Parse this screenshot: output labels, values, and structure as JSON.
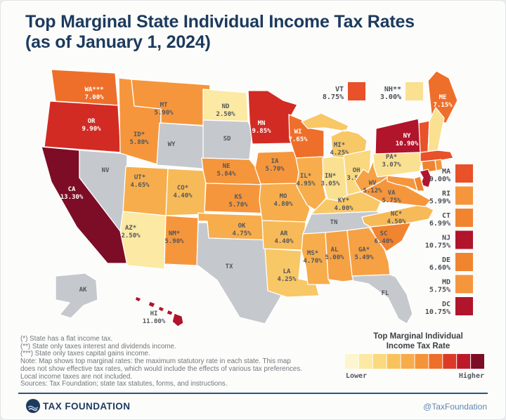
{
  "title": {
    "line1": "Top Marginal State Individual Income Tax Rates",
    "line2": "(as of January 1, 2024)"
  },
  "chart_data": {
    "type": "heatmap",
    "geography": "United States (states + DC)",
    "unit": "%",
    "title": "Top Marginal State Individual Income Tax Rates (as of January 1, 2024)",
    "states": [
      {
        "id": "WA",
        "abbr": "WA***",
        "rate": 7.0,
        "display": "7.00%"
      },
      {
        "id": "OR",
        "abbr": "OR",
        "rate": 9.9,
        "display": "9.90%"
      },
      {
        "id": "CA",
        "abbr": "CA",
        "rate": 13.3,
        "display": "13.30%"
      },
      {
        "id": "ID",
        "abbr": "ID*",
        "rate": 5.8,
        "display": "5.80%"
      },
      {
        "id": "NV",
        "abbr": "NV",
        "rate": null,
        "display": null
      },
      {
        "id": "MT",
        "abbr": "MT",
        "rate": 5.9,
        "display": "5.90%"
      },
      {
        "id": "WY",
        "abbr": "WY",
        "rate": null,
        "display": null
      },
      {
        "id": "UT",
        "abbr": "UT*",
        "rate": 4.65,
        "display": "4.65%"
      },
      {
        "id": "CO",
        "abbr": "CO*",
        "rate": 4.4,
        "display": "4.40%"
      },
      {
        "id": "AZ",
        "abbr": "AZ*",
        "rate": 2.5,
        "display": "2.50%"
      },
      {
        "id": "NM",
        "abbr": "NM*",
        "rate": 5.9,
        "display": "5.90%"
      },
      {
        "id": "ND",
        "abbr": "ND",
        "rate": 2.5,
        "display": "2.50%"
      },
      {
        "id": "SD",
        "abbr": "SD",
        "rate": null,
        "display": null
      },
      {
        "id": "NE",
        "abbr": "NE",
        "rate": 5.84,
        "display": "5.84%"
      },
      {
        "id": "KS",
        "abbr": "KS",
        "rate": 5.7,
        "display": "5.70%"
      },
      {
        "id": "OK",
        "abbr": "OK",
        "rate": 4.75,
        "display": "4.75%"
      },
      {
        "id": "TX",
        "abbr": "TX",
        "rate": null,
        "display": null
      },
      {
        "id": "MN",
        "abbr": "MN",
        "rate": 9.85,
        "display": "9.85%"
      },
      {
        "id": "IA",
        "abbr": "IA",
        "rate": 5.7,
        "display": "5.70%"
      },
      {
        "id": "MO",
        "abbr": "MO",
        "rate": 4.8,
        "display": "4.80%"
      },
      {
        "id": "AR",
        "abbr": "AR",
        "rate": 4.4,
        "display": "4.40%"
      },
      {
        "id": "LA",
        "abbr": "LA",
        "rate": 4.25,
        "display": "4.25%"
      },
      {
        "id": "WI",
        "abbr": "WI",
        "rate": 7.65,
        "display": "7.65%"
      },
      {
        "id": "IL",
        "abbr": "IL*",
        "rate": 4.95,
        "display": "4.95%"
      },
      {
        "id": "IN",
        "abbr": "IN*",
        "rate": 3.05,
        "display": "3.05%"
      },
      {
        "id": "MI",
        "abbr": "MI*",
        "rate": 4.25,
        "display": "4.25%"
      },
      {
        "id": "OH",
        "abbr": "OH",
        "rate": 3.5,
        "display": "3.50%"
      },
      {
        "id": "KY",
        "abbr": "KY*",
        "rate": 4.0,
        "display": "4.00%"
      },
      {
        "id": "TN",
        "abbr": "TN",
        "rate": null,
        "display": null
      },
      {
        "id": "MS",
        "abbr": "MS*",
        "rate": 4.7,
        "display": "4.70%"
      },
      {
        "id": "AL",
        "abbr": "AL",
        "rate": 5.0,
        "display": "5.00%"
      },
      {
        "id": "GA",
        "abbr": "GA*",
        "rate": 5.49,
        "display": "5.49%"
      },
      {
        "id": "FL",
        "abbr": "FL",
        "rate": null,
        "display": null
      },
      {
        "id": "SC",
        "abbr": "SC",
        "rate": 6.4,
        "display": "6.40%"
      },
      {
        "id": "NC",
        "abbr": "NC*",
        "rate": 4.5,
        "display": "4.50%"
      },
      {
        "id": "VA",
        "abbr": "VA",
        "rate": 5.75,
        "display": "5.75%"
      },
      {
        "id": "WV",
        "abbr": "WV",
        "rate": 5.12,
        "display": "5.12%"
      },
      {
        "id": "PA",
        "abbr": "PA*",
        "rate": 3.07,
        "display": "3.07%"
      },
      {
        "id": "NY",
        "abbr": "NY",
        "rate": 10.9,
        "display": "10.90%"
      },
      {
        "id": "ME",
        "abbr": "ME",
        "rate": 7.15,
        "display": "7.15%"
      },
      {
        "id": "VT",
        "abbr": "VT",
        "rate": 8.75,
        "display": "8.75%"
      },
      {
        "id": "NH",
        "abbr": "NH**",
        "rate": 3.0,
        "display": "3.00%"
      },
      {
        "id": "MA",
        "abbr": "MA",
        "rate": 9.0,
        "display": "9.00%"
      },
      {
        "id": "RI",
        "abbr": "RI",
        "rate": 5.99,
        "display": "5.99%"
      },
      {
        "id": "CT",
        "abbr": "CT",
        "rate": 6.99,
        "display": "6.99%"
      },
      {
        "id": "NJ",
        "abbr": "NJ",
        "rate": 10.75,
        "display": "10.75%"
      },
      {
        "id": "DE",
        "abbr": "DE",
        "rate": 6.6,
        "display": "6.60%"
      },
      {
        "id": "MD",
        "abbr": "MD",
        "rate": 5.75,
        "display": "5.75%"
      },
      {
        "id": "DC",
        "abbr": "DC",
        "rate": 10.75,
        "display": "10.75%"
      },
      {
        "id": "AK",
        "abbr": "AK",
        "rate": null,
        "display": null
      },
      {
        "id": "HI",
        "abbr": "HI",
        "rate": 11.0,
        "display": "11.00%"
      }
    ]
  },
  "callouts": {
    "top": [
      "VT",
      "NH"
    ],
    "right": [
      "MA",
      "RI",
      "CT",
      "NJ",
      "DE",
      "MD",
      "DC"
    ]
  },
  "legend": {
    "title_line1": "Top Marginal Individual",
    "title_line2": "Income Tax Rate",
    "lower": "Lower",
    "higher": "Higher",
    "palette": [
      "#FDF5CD",
      "#FBE9A4",
      "#FAD97F",
      "#F8C25D",
      "#F7AC4B",
      "#F5933A",
      "#EE6F2A",
      "#DC3A27",
      "#BC1A2B",
      "#7D0D26"
    ]
  },
  "footnotes": [
    "(*) State has a flat income tax.",
    "(**) State only taxes interest and dividends income.",
    "(***) State only taxes capital gains income.",
    "Note: Map shows top marginal rates: the maximum statutory rate in each state. This map",
    "does not show effective tax rates, which would include the effects of various tax preferences.",
    "Local income taxes are not included.",
    "Sources: Tax Foundation; state tax statutes, forms, and instructions."
  ],
  "footer": {
    "brand": "TAX FOUNDATION",
    "handle": "@TaxFoundation"
  },
  "colors": {
    "no_tax": "#C5C9CE",
    "navy": "#1C3A5E",
    "label_dark": "#53565C",
    "label_light": "#FFFFFF"
  }
}
